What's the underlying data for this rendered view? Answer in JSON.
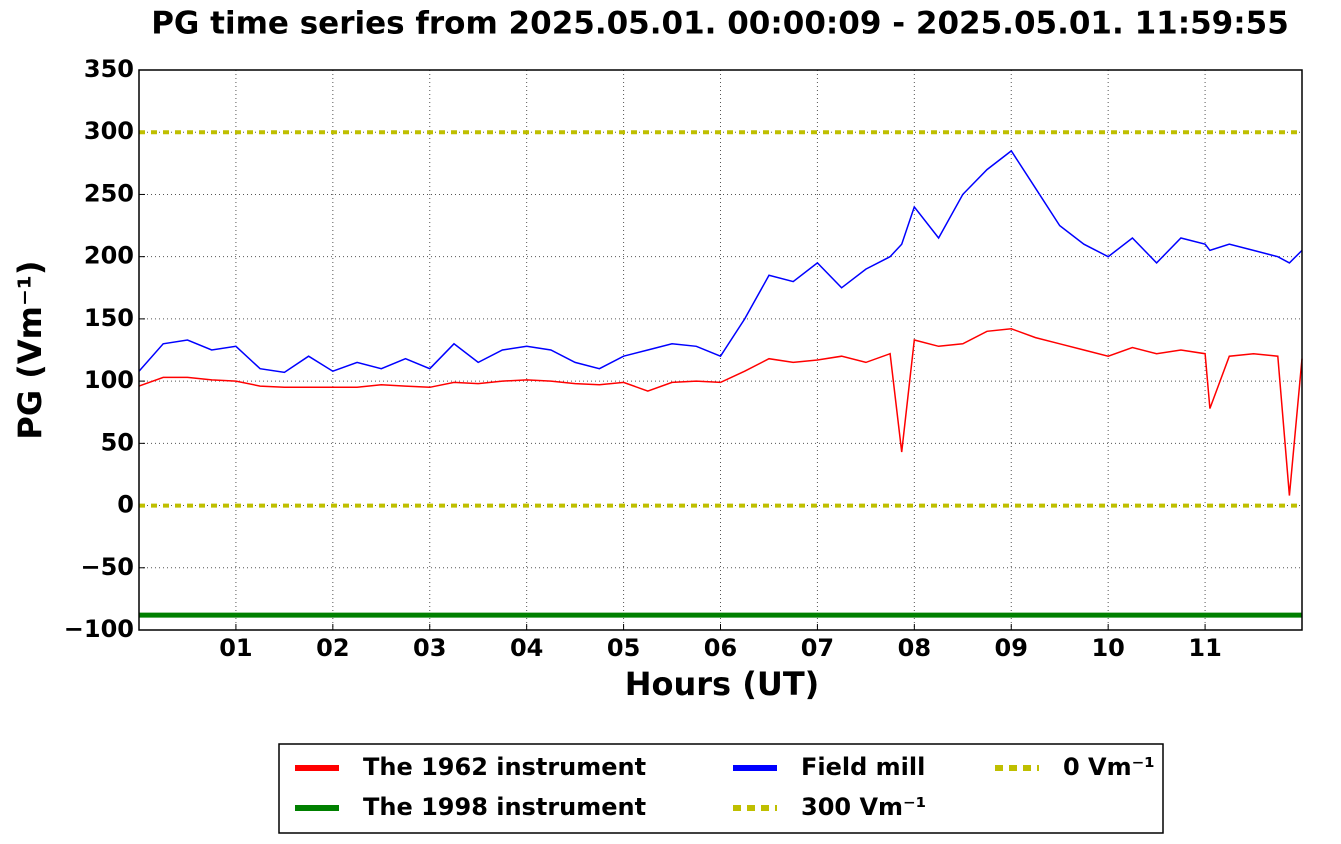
{
  "chart_data": {
    "type": "line",
    "title": "PG time series from 2025.05.01. 00:00:09 - 2025.05.01. 11:59:55",
    "x_label": "Hours (UT)",
    "y_label": "PG (Vm⁻¹)",
    "x": [
      0,
      0.25,
      0.5,
      0.75,
      1,
      1.25,
      1.5,
      1.75,
      2,
      2.25,
      2.5,
      2.75,
      3,
      3.25,
      3.5,
      3.75,
      4,
      4.25,
      4.5,
      4.75,
      5,
      5.25,
      5.5,
      5.75,
      6,
      6.25,
      6.5,
      6.75,
      7,
      7.25,
      7.5,
      7.75,
      7.87,
      8,
      8.25,
      8.5,
      8.75,
      9,
      9.25,
      9.5,
      9.75,
      10,
      10.25,
      10.5,
      10.75,
      11,
      11.05,
      11.25,
      11.5,
      11.75,
      11.87,
      12
    ],
    "series": [
      {
        "name": "The 1962 instrument",
        "color": "#ff0000",
        "style": "solid",
        "values": [
          96,
          103,
          103,
          101,
          100,
          96,
          95,
          95,
          95,
          95,
          97,
          96,
          95,
          99,
          98,
          100,
          101,
          100,
          98,
          97,
          99,
          92,
          99,
          100,
          99,
          108,
          118,
          115,
          117,
          120,
          115,
          122,
          43,
          133,
          128,
          130,
          140,
          142,
          135,
          130,
          125,
          120,
          127,
          122,
          125,
          122,
          78,
          120,
          122,
          120,
          8,
          118
        ]
      },
      {
        "name": "The 1998 instrument",
        "color": "#008000",
        "style": "solid",
        "values": [
          -88,
          -88,
          -88,
          -88,
          -88,
          -88,
          -88,
          -88,
          -88,
          -88,
          -88,
          -88,
          -88,
          -88,
          -88,
          -88,
          -88,
          -88,
          -88,
          -88,
          -88,
          -88,
          -88,
          -88,
          -88,
          -88,
          -88,
          -88,
          -88,
          -88,
          -88,
          -88,
          -88,
          -88,
          -88,
          -88,
          -88,
          -88,
          -88,
          -88,
          -88,
          -88,
          -88,
          -88,
          -88,
          -88,
          -88,
          -88,
          -88,
          -88,
          -88,
          -88
        ]
      },
      {
        "name": "Field mill",
        "color": "#0000ff",
        "style": "solid",
        "values": [
          108,
          130,
          133,
          125,
          128,
          110,
          107,
          120,
          108,
          115,
          110,
          118,
          110,
          130,
          115,
          125,
          128,
          125,
          115,
          110,
          120,
          125,
          130,
          128,
          120,
          150,
          185,
          180,
          195,
          175,
          190,
          200,
          210,
          240,
          215,
          250,
          270,
          285,
          255,
          225,
          210,
          200,
          215,
          195,
          215,
          210,
          205,
          210,
          205,
          200,
          195,
          205
        ]
      },
      {
        "name": "300 Vm⁻¹",
        "color": "#bfbf00",
        "style": "dotted",
        "values": [
          300,
          300,
          300,
          300,
          300,
          300,
          300,
          300,
          300,
          300,
          300,
          300,
          300,
          300,
          300,
          300,
          300,
          300,
          300,
          300,
          300,
          300,
          300,
          300,
          300,
          300,
          300,
          300,
          300,
          300,
          300,
          300,
          300,
          300,
          300,
          300,
          300,
          300,
          300,
          300,
          300,
          300,
          300,
          300,
          300,
          300,
          300,
          300,
          300,
          300,
          300,
          300
        ]
      },
      {
        "name": "0 Vm⁻¹",
        "color": "#bfbf00",
        "style": "dotted",
        "values": [
          0,
          0,
          0,
          0,
          0,
          0,
          0,
          0,
          0,
          0,
          0,
          0,
          0,
          0,
          0,
          0,
          0,
          0,
          0,
          0,
          0,
          0,
          0,
          0,
          0,
          0,
          0,
          0,
          0,
          0,
          0,
          0,
          0,
          0,
          0,
          0,
          0,
          0,
          0,
          0,
          0,
          0,
          0,
          0,
          0,
          0,
          0,
          0,
          0,
          0,
          0,
          0
        ]
      }
    ],
    "xlim": [
      0,
      12
    ],
    "xticks": [
      {
        "value": 1,
        "label": "01"
      },
      {
        "value": 2,
        "label": "02"
      },
      {
        "value": 3,
        "label": "03"
      },
      {
        "value": 4,
        "label": "04"
      },
      {
        "value": 5,
        "label": "05"
      },
      {
        "value": 6,
        "label": "06"
      },
      {
        "value": 7,
        "label": "07"
      },
      {
        "value": 8,
        "label": "08"
      },
      {
        "value": 9,
        "label": "09"
      },
      {
        "value": 10,
        "label": "10"
      },
      {
        "value": 11,
        "label": "11"
      }
    ],
    "ylim": [
      -100,
      350
    ],
    "yticks": [
      {
        "value": -100,
        "label": "−100"
      },
      {
        "value": -50,
        "label": "−50"
      },
      0,
      50,
      100,
      150,
      200,
      250,
      300,
      350
    ],
    "grid": true,
    "legend": "bottom"
  }
}
